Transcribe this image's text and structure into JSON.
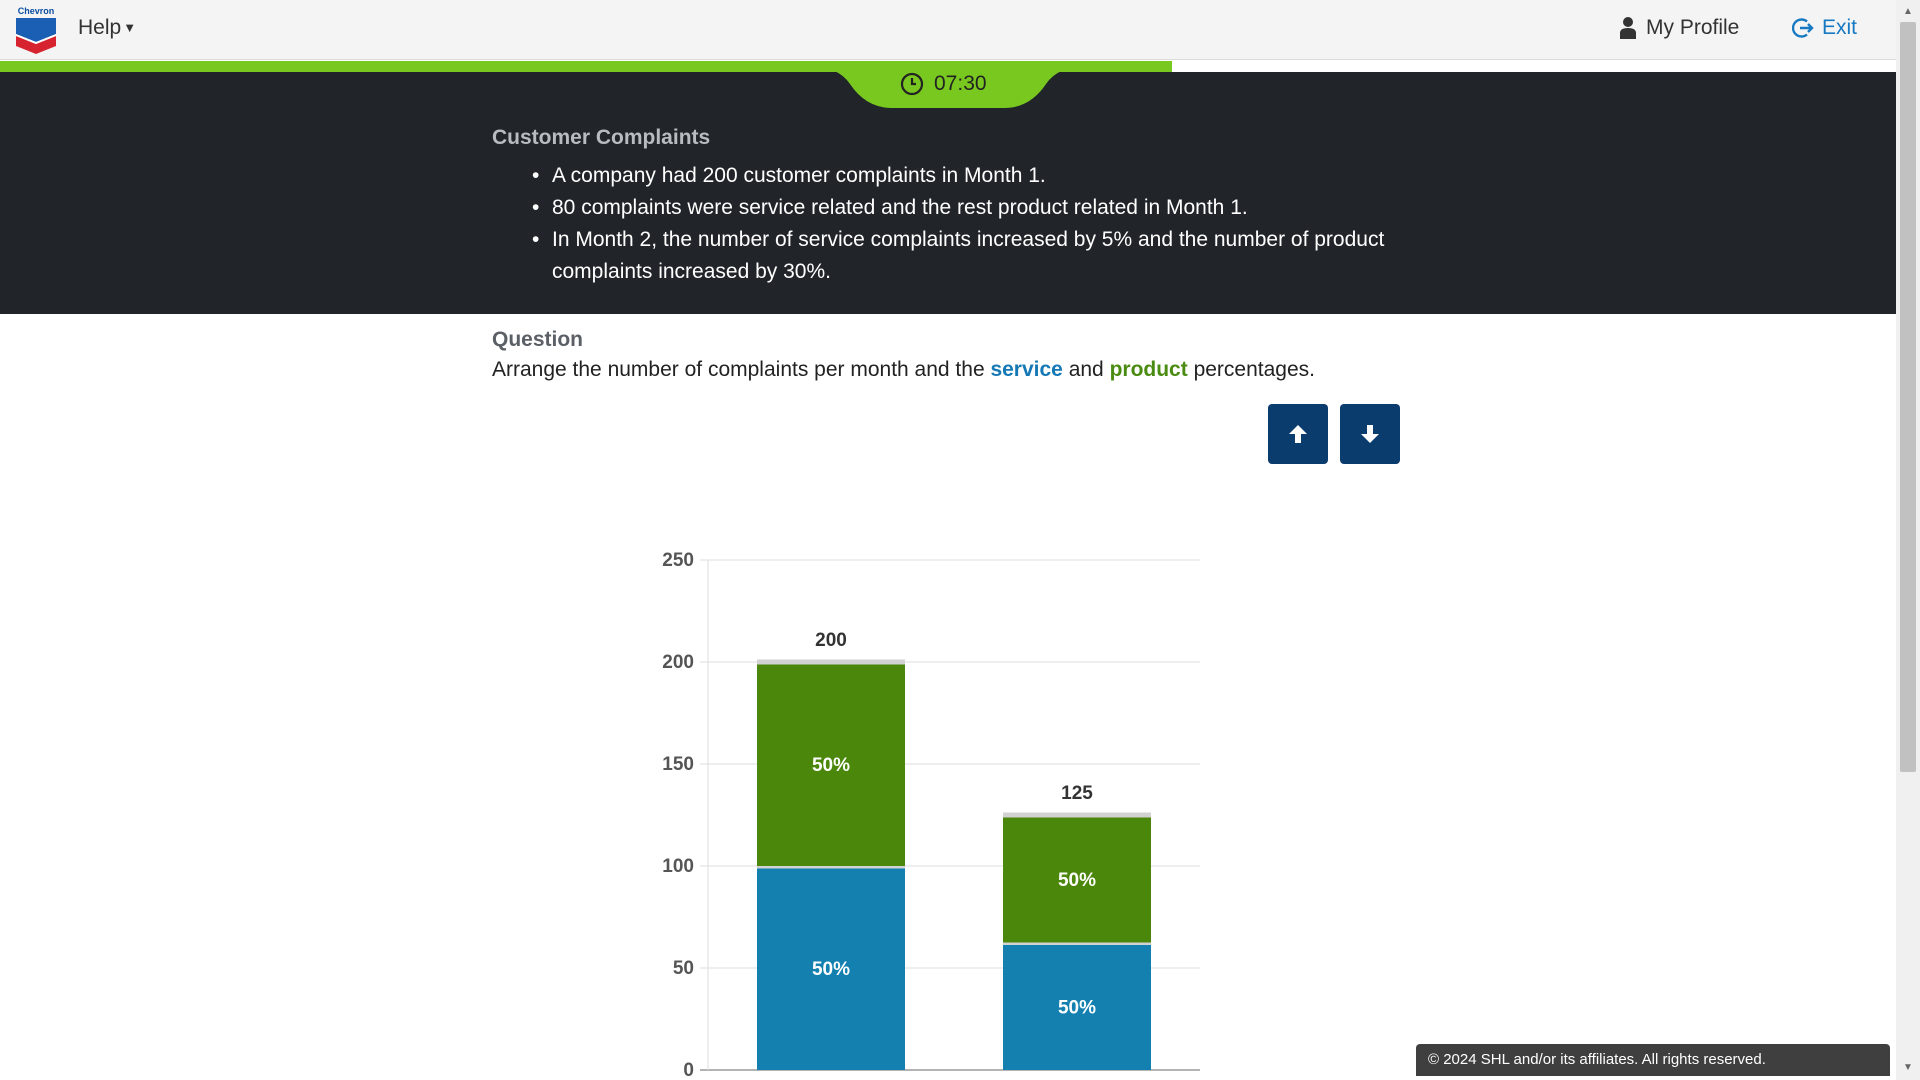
{
  "nav": {
    "logo_text": "Chevron",
    "help_label": "Help",
    "profile_label": "My Profile",
    "exit_label": "Exit"
  },
  "timer": {
    "time": "07:30",
    "progress": 0.618
  },
  "info": {
    "title": "Customer Complaints",
    "bullets": [
      "A company had 200 customer complaints in Month 1.",
      "80 complaints were service related and the rest product related in Month 1.",
      "In Month 2, the number of service complaints increased by 5% and the number of product complaints increased by 30%."
    ]
  },
  "question": {
    "label": "Question",
    "text_before": "Arrange the number of complaints per month and the ",
    "service_word": "service",
    "text_mid": " and ",
    "product_word": "product",
    "text_after": " percentages."
  },
  "buttons": {
    "up_icon": "arrow-up-icon",
    "down_icon": "arrow-down-icon"
  },
  "colors": {
    "service": "#1380b0",
    "product": "#4b870b",
    "accent": "#79c81f",
    "button": "#0a3c6e"
  },
  "chart_data": {
    "type": "bar",
    "stacked": true,
    "ylim": [
      0,
      250
    ],
    "yticks": [
      0,
      50,
      100,
      150,
      200,
      250
    ],
    "categories": [
      "",
      ""
    ],
    "totals": [
      200,
      125
    ],
    "series": [
      {
        "name": "service",
        "values": [
          100,
          62.5
        ],
        "labels": [
          "50%",
          "50%"
        ]
      },
      {
        "name": "product",
        "values": [
          100,
          62.5
        ],
        "labels": [
          "50%",
          "50%"
        ]
      }
    ],
    "title": "",
    "xlabel": "",
    "ylabel": ""
  },
  "footer": {
    "text": "© 2024 SHL and/or its affiliates. All rights reserved."
  }
}
